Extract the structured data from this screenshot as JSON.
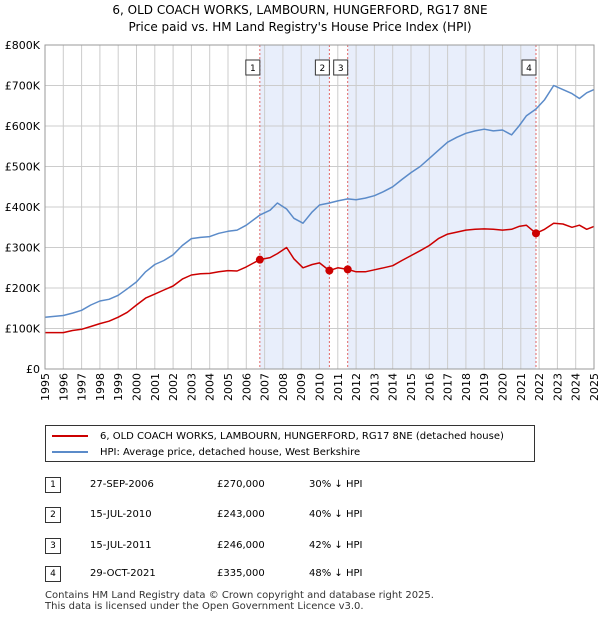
{
  "title": {
    "line1": "6, OLD COACH WORKS, LAMBOURN, HUNGERFORD, RG17 8NE",
    "line2": "Price paid vs. HM Land Registry's House Price Index (HPI)"
  },
  "colors": {
    "red": "#cc0000",
    "blue": "#5b8bc9",
    "shade": "#e8eefb",
    "grid": "#cccccc"
  },
  "chart_data": {
    "type": "line",
    "ylabel": "",
    "xlabel": "",
    "ylim": [
      0,
      800000
    ],
    "xlim": [
      1995,
      2025
    ],
    "y_ticks": [
      {
        "value": 0,
        "label": "£0"
      },
      {
        "value": 100000,
        "label": "£100K"
      },
      {
        "value": 200000,
        "label": "£200K"
      },
      {
        "value": 300000,
        "label": "£300K"
      },
      {
        "value": 400000,
        "label": "£400K"
      },
      {
        "value": 500000,
        "label": "£500K"
      },
      {
        "value": 600000,
        "label": "£600K"
      },
      {
        "value": 700000,
        "label": "£700K"
      },
      {
        "value": 800000,
        "label": "£800K"
      }
    ],
    "x_ticks": [
      "1995",
      "1996",
      "1997",
      "1998",
      "1999",
      "2000",
      "2001",
      "2002",
      "2003",
      "2004",
      "2005",
      "2006",
      "2007",
      "2008",
      "2009",
      "2010",
      "2011",
      "2012",
      "2013",
      "2014",
      "2015",
      "2016",
      "2017",
      "2018",
      "2019",
      "2020",
      "2021",
      "2022",
      "2023",
      "2024",
      "2025"
    ],
    "series": [
      {
        "name": "6, OLD COACH WORKS, LAMBOURN, HUNGERFORD, RG17 8NE (detached house)",
        "color": "#cc0000",
        "points": [
          [
            1995.0,
            90000
          ],
          [
            1996.0,
            90000
          ],
          [
            1996.5,
            95000
          ],
          [
            1997.0,
            98000
          ],
          [
            1997.5,
            105000
          ],
          [
            1998.0,
            112000
          ],
          [
            1998.5,
            118000
          ],
          [
            1999.0,
            128000
          ],
          [
            1999.5,
            140000
          ],
          [
            2000.0,
            158000
          ],
          [
            2000.5,
            175000
          ],
          [
            2001.0,
            185000
          ],
          [
            2001.5,
            195000
          ],
          [
            2002.0,
            205000
          ],
          [
            2002.5,
            222000
          ],
          [
            2003.0,
            232000
          ],
          [
            2003.5,
            235000
          ],
          [
            2004.0,
            236000
          ],
          [
            2004.5,
            240000
          ],
          [
            2005.0,
            243000
          ],
          [
            2005.5,
            242000
          ],
          [
            2006.0,
            252000
          ],
          [
            2006.74,
            270000
          ],
          [
            2007.3,
            275000
          ],
          [
            2007.7,
            285000
          ],
          [
            2008.2,
            300000
          ],
          [
            2008.6,
            272000
          ],
          [
            2009.1,
            250000
          ],
          [
            2009.6,
            258000
          ],
          [
            2010.0,
            262000
          ],
          [
            2010.54,
            243000
          ],
          [
            2011.0,
            250000
          ],
          [
            2011.54,
            246000
          ],
          [
            2012.0,
            240000
          ],
          [
            2012.5,
            240000
          ],
          [
            2013.0,
            245000
          ],
          [
            2013.5,
            250000
          ],
          [
            2014.0,
            255000
          ],
          [
            2014.5,
            268000
          ],
          [
            2015.0,
            280000
          ],
          [
            2015.5,
            292000
          ],
          [
            2016.0,
            305000
          ],
          [
            2016.5,
            322000
          ],
          [
            2017.0,
            333000
          ],
          [
            2017.5,
            338000
          ],
          [
            2018.0,
            343000
          ],
          [
            2018.5,
            345000
          ],
          [
            2019.0,
            346000
          ],
          [
            2019.5,
            345000
          ],
          [
            2020.0,
            343000
          ],
          [
            2020.5,
            345000
          ],
          [
            2020.9,
            352000
          ],
          [
            2021.3,
            355000
          ],
          [
            2021.83,
            335000
          ],
          [
            2022.3,
            345000
          ],
          [
            2022.8,
            360000
          ],
          [
            2023.3,
            358000
          ],
          [
            2023.8,
            350000
          ],
          [
            2024.2,
            355000
          ],
          [
            2024.6,
            345000
          ],
          [
            2025.0,
            352000
          ]
        ]
      },
      {
        "name": "HPI: Average price, detached house, West Berkshire",
        "color": "#5b8bc9",
        "points": [
          [
            1995.0,
            128000
          ],
          [
            1996.0,
            132000
          ],
          [
            1996.5,
            138000
          ],
          [
            1997.0,
            145000
          ],
          [
            1997.5,
            158000
          ],
          [
            1998.0,
            168000
          ],
          [
            1998.5,
            172000
          ],
          [
            1999.0,
            182000
          ],
          [
            1999.5,
            198000
          ],
          [
            2000.0,
            215000
          ],
          [
            2000.5,
            240000
          ],
          [
            2001.0,
            258000
          ],
          [
            2001.5,
            268000
          ],
          [
            2002.0,
            282000
          ],
          [
            2002.5,
            305000
          ],
          [
            2003.0,
            322000
          ],
          [
            2003.5,
            325000
          ],
          [
            2004.0,
            327000
          ],
          [
            2004.5,
            335000
          ],
          [
            2005.0,
            340000
          ],
          [
            2005.5,
            343000
          ],
          [
            2006.0,
            355000
          ],
          [
            2006.74,
            380000
          ],
          [
            2007.3,
            392000
          ],
          [
            2007.7,
            410000
          ],
          [
            2008.2,
            395000
          ],
          [
            2008.6,
            372000
          ],
          [
            2009.1,
            360000
          ],
          [
            2009.6,
            388000
          ],
          [
            2010.0,
            405000
          ],
          [
            2010.54,
            410000
          ],
          [
            2011.0,
            415000
          ],
          [
            2011.54,
            420000
          ],
          [
            2012.0,
            418000
          ],
          [
            2012.5,
            422000
          ],
          [
            2013.0,
            428000
          ],
          [
            2013.5,
            438000
          ],
          [
            2014.0,
            450000
          ],
          [
            2014.5,
            468000
          ],
          [
            2015.0,
            485000
          ],
          [
            2015.5,
            500000
          ],
          [
            2016.0,
            520000
          ],
          [
            2016.5,
            540000
          ],
          [
            2017.0,
            560000
          ],
          [
            2017.5,
            572000
          ],
          [
            2018.0,
            582000
          ],
          [
            2018.5,
            588000
          ],
          [
            2019.0,
            592000
          ],
          [
            2019.5,
            588000
          ],
          [
            2020.0,
            590000
          ],
          [
            2020.5,
            578000
          ],
          [
            2020.9,
            600000
          ],
          [
            2021.3,
            625000
          ],
          [
            2021.83,
            642000
          ],
          [
            2022.3,
            665000
          ],
          [
            2022.8,
            700000
          ],
          [
            2023.3,
            690000
          ],
          [
            2023.8,
            680000
          ],
          [
            2024.2,
            668000
          ],
          [
            2024.6,
            682000
          ],
          [
            2025.0,
            690000
          ]
        ]
      }
    ],
    "transactions": [
      {
        "num": "1",
        "x": 2006.74,
        "value": 270000
      },
      {
        "num": "2",
        "x": 2010.54,
        "value": 243000
      },
      {
        "num": "3",
        "x": 2011.54,
        "value": 246000
      },
      {
        "num": "4",
        "x": 2021.83,
        "value": 335000
      }
    ],
    "shaded_ranges": [
      [
        2006.74,
        2010.54
      ],
      [
        2011.54,
        2021.83
      ]
    ],
    "hatch_from": 2025.0
  },
  "legend": {
    "red_label": "6, OLD COACH WORKS, LAMBOURN, HUNGERFORD, RG17 8NE (detached house)",
    "blue_label": "HPI: Average price, detached house, West Berkshire"
  },
  "table": [
    {
      "num": "1",
      "date": "27-SEP-2006",
      "price": "£270,000",
      "hpi": "30% ↓ HPI"
    },
    {
      "num": "2",
      "date": "15-JUL-2010",
      "price": "£243,000",
      "hpi": "40% ↓ HPI"
    },
    {
      "num": "3",
      "date": "15-JUL-2011",
      "price": "£246,000",
      "hpi": "42% ↓ HPI"
    },
    {
      "num": "4",
      "date": "29-OCT-2021",
      "price": "£335,000",
      "hpi": "48% ↓ HPI"
    }
  ],
  "footer": {
    "line1": "Contains HM Land Registry data © Crown copyright and database right 2025.",
    "line2": "This data is licensed under the Open Government Licence v3.0."
  }
}
